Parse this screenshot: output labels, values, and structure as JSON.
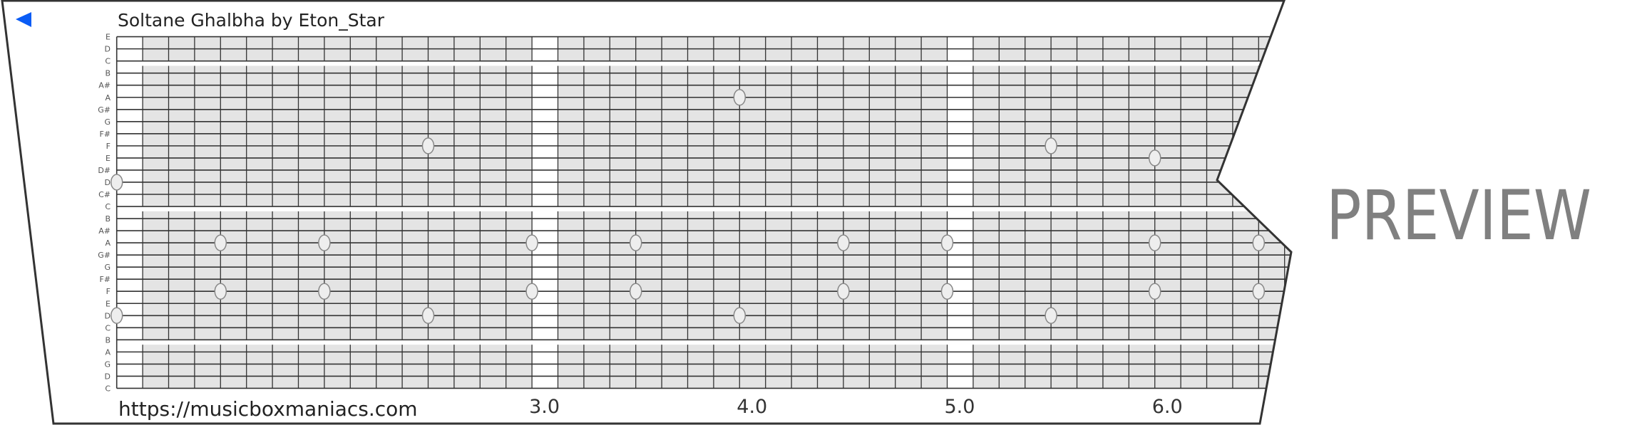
{
  "header": {
    "title": "Soltane Ghalbha by Eton_Star",
    "back_icon": "play-left-triangle-icon",
    "back_icon_color": "#0a5cf5"
  },
  "footer": {
    "url": "https://musicboxmaniacs.com"
  },
  "watermark": "PREVIEW",
  "colors": {
    "paper_fill": "#e4e4e4",
    "grid_line": "#333333",
    "note_fill": "#eeeeee",
    "note_stroke": "#888888",
    "watermark": "#808080"
  },
  "strip": {
    "row_labels": [
      "E",
      "D",
      "C",
      "B",
      "A#",
      "A",
      "G#",
      "G",
      "F#",
      "F",
      "E",
      "D#",
      "D",
      "C#",
      "C",
      "B",
      "A#",
      "A",
      "G#",
      "G",
      "F#",
      "F",
      "E",
      "D",
      "C",
      "B",
      "A",
      "G",
      "D",
      "C"
    ],
    "row_pitches": [
      "E6",
      "D6",
      "C6",
      "B5",
      "A#5",
      "A5",
      "G#5",
      "G5",
      "F#5",
      "F5",
      "E5",
      "D#5",
      "D5",
      "C#5",
      "C5",
      "B4",
      "A#4",
      "A4",
      "G#4",
      "G4",
      "F#4",
      "F4",
      "E4",
      "D4",
      "C4",
      "B3",
      "A3",
      "G3",
      "D3",
      "C3"
    ],
    "time_ticks": [
      "3.0",
      "4.0",
      "5.0",
      "6.0"
    ],
    "notes": [
      {
        "time": 1.0,
        "pitches": [
          "D5",
          "D4"
        ]
      },
      {
        "time": 1.5,
        "pitches": [
          "A4",
          "F4"
        ]
      },
      {
        "time": 2.0,
        "pitches": [
          "A4",
          "F4"
        ]
      },
      {
        "time": 2.5,
        "pitches": [
          "F5",
          "D4"
        ]
      },
      {
        "time": 3.0,
        "pitches": [
          "A4",
          "F4"
        ]
      },
      {
        "time": 3.5,
        "pitches": [
          "A4",
          "F4"
        ]
      },
      {
        "time": 4.0,
        "pitches": [
          "A5",
          "D4"
        ]
      },
      {
        "time": 4.5,
        "pitches": [
          "A4",
          "F4"
        ]
      },
      {
        "time": 5.0,
        "pitches": [
          "A4",
          "F4"
        ]
      },
      {
        "time": 5.5,
        "pitches": [
          "F5",
          "D4"
        ]
      },
      {
        "time": 6.0,
        "pitches": [
          "E5",
          "A4",
          "F4"
        ]
      },
      {
        "time": 6.5,
        "pitches": [
          "A4",
          "F4"
        ]
      }
    ]
  }
}
